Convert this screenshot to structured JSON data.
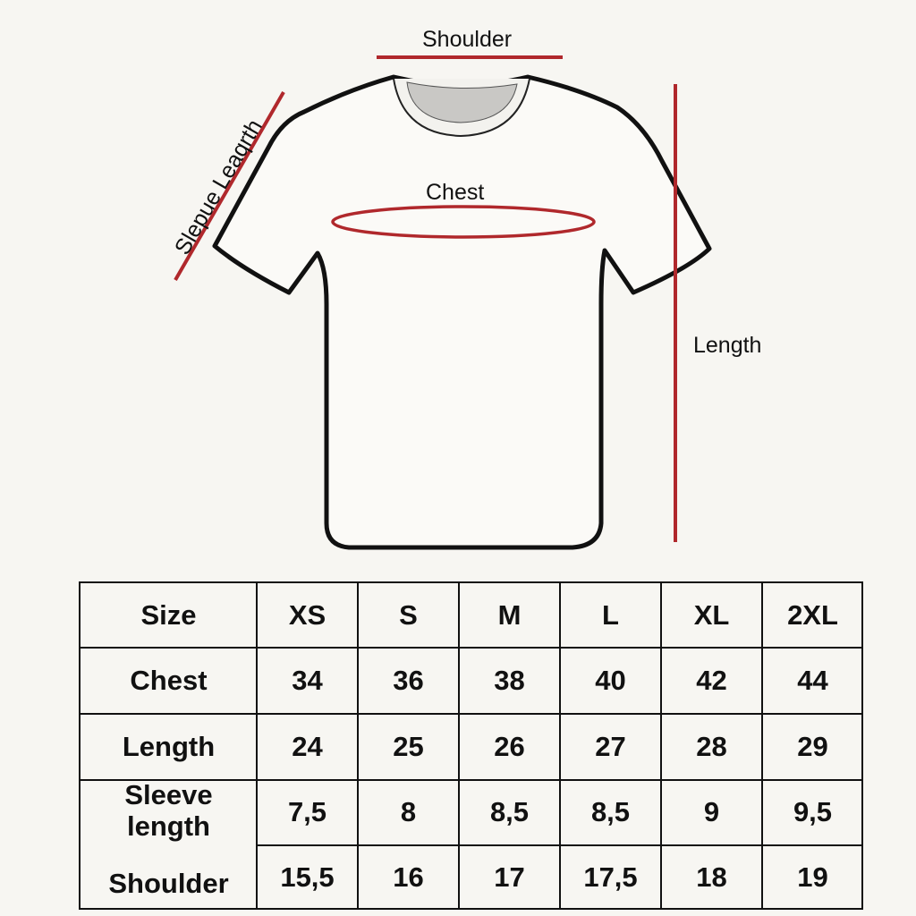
{
  "diagram": {
    "labels": {
      "shoulder": "Shoulder",
      "chest": "Chest",
      "sleeve": "Slepue Leaqrth",
      "length": "Length"
    },
    "colors": {
      "measure_line": "#b0282c",
      "outline": "#111111",
      "background": "#f7f6f2"
    }
  },
  "table": {
    "header": [
      "Size",
      "XS",
      "S",
      "M",
      "L",
      "XL",
      "2XL"
    ],
    "rows": [
      {
        "label": "Chest",
        "values": [
          "34",
          "36",
          "38",
          "40",
          "42",
          "44"
        ]
      },
      {
        "label": "Length",
        "values": [
          "24",
          "25",
          "26",
          "27",
          "28",
          "29"
        ]
      },
      {
        "label": "Sleeve length",
        "values": [
          "7,5",
          "8",
          "8,5",
          "8,5",
          "9",
          "9,5"
        ]
      },
      {
        "label": "Shoulder",
        "values": [
          "15,5",
          "16",
          "17",
          "17,5",
          "18",
          "19"
        ]
      }
    ]
  }
}
